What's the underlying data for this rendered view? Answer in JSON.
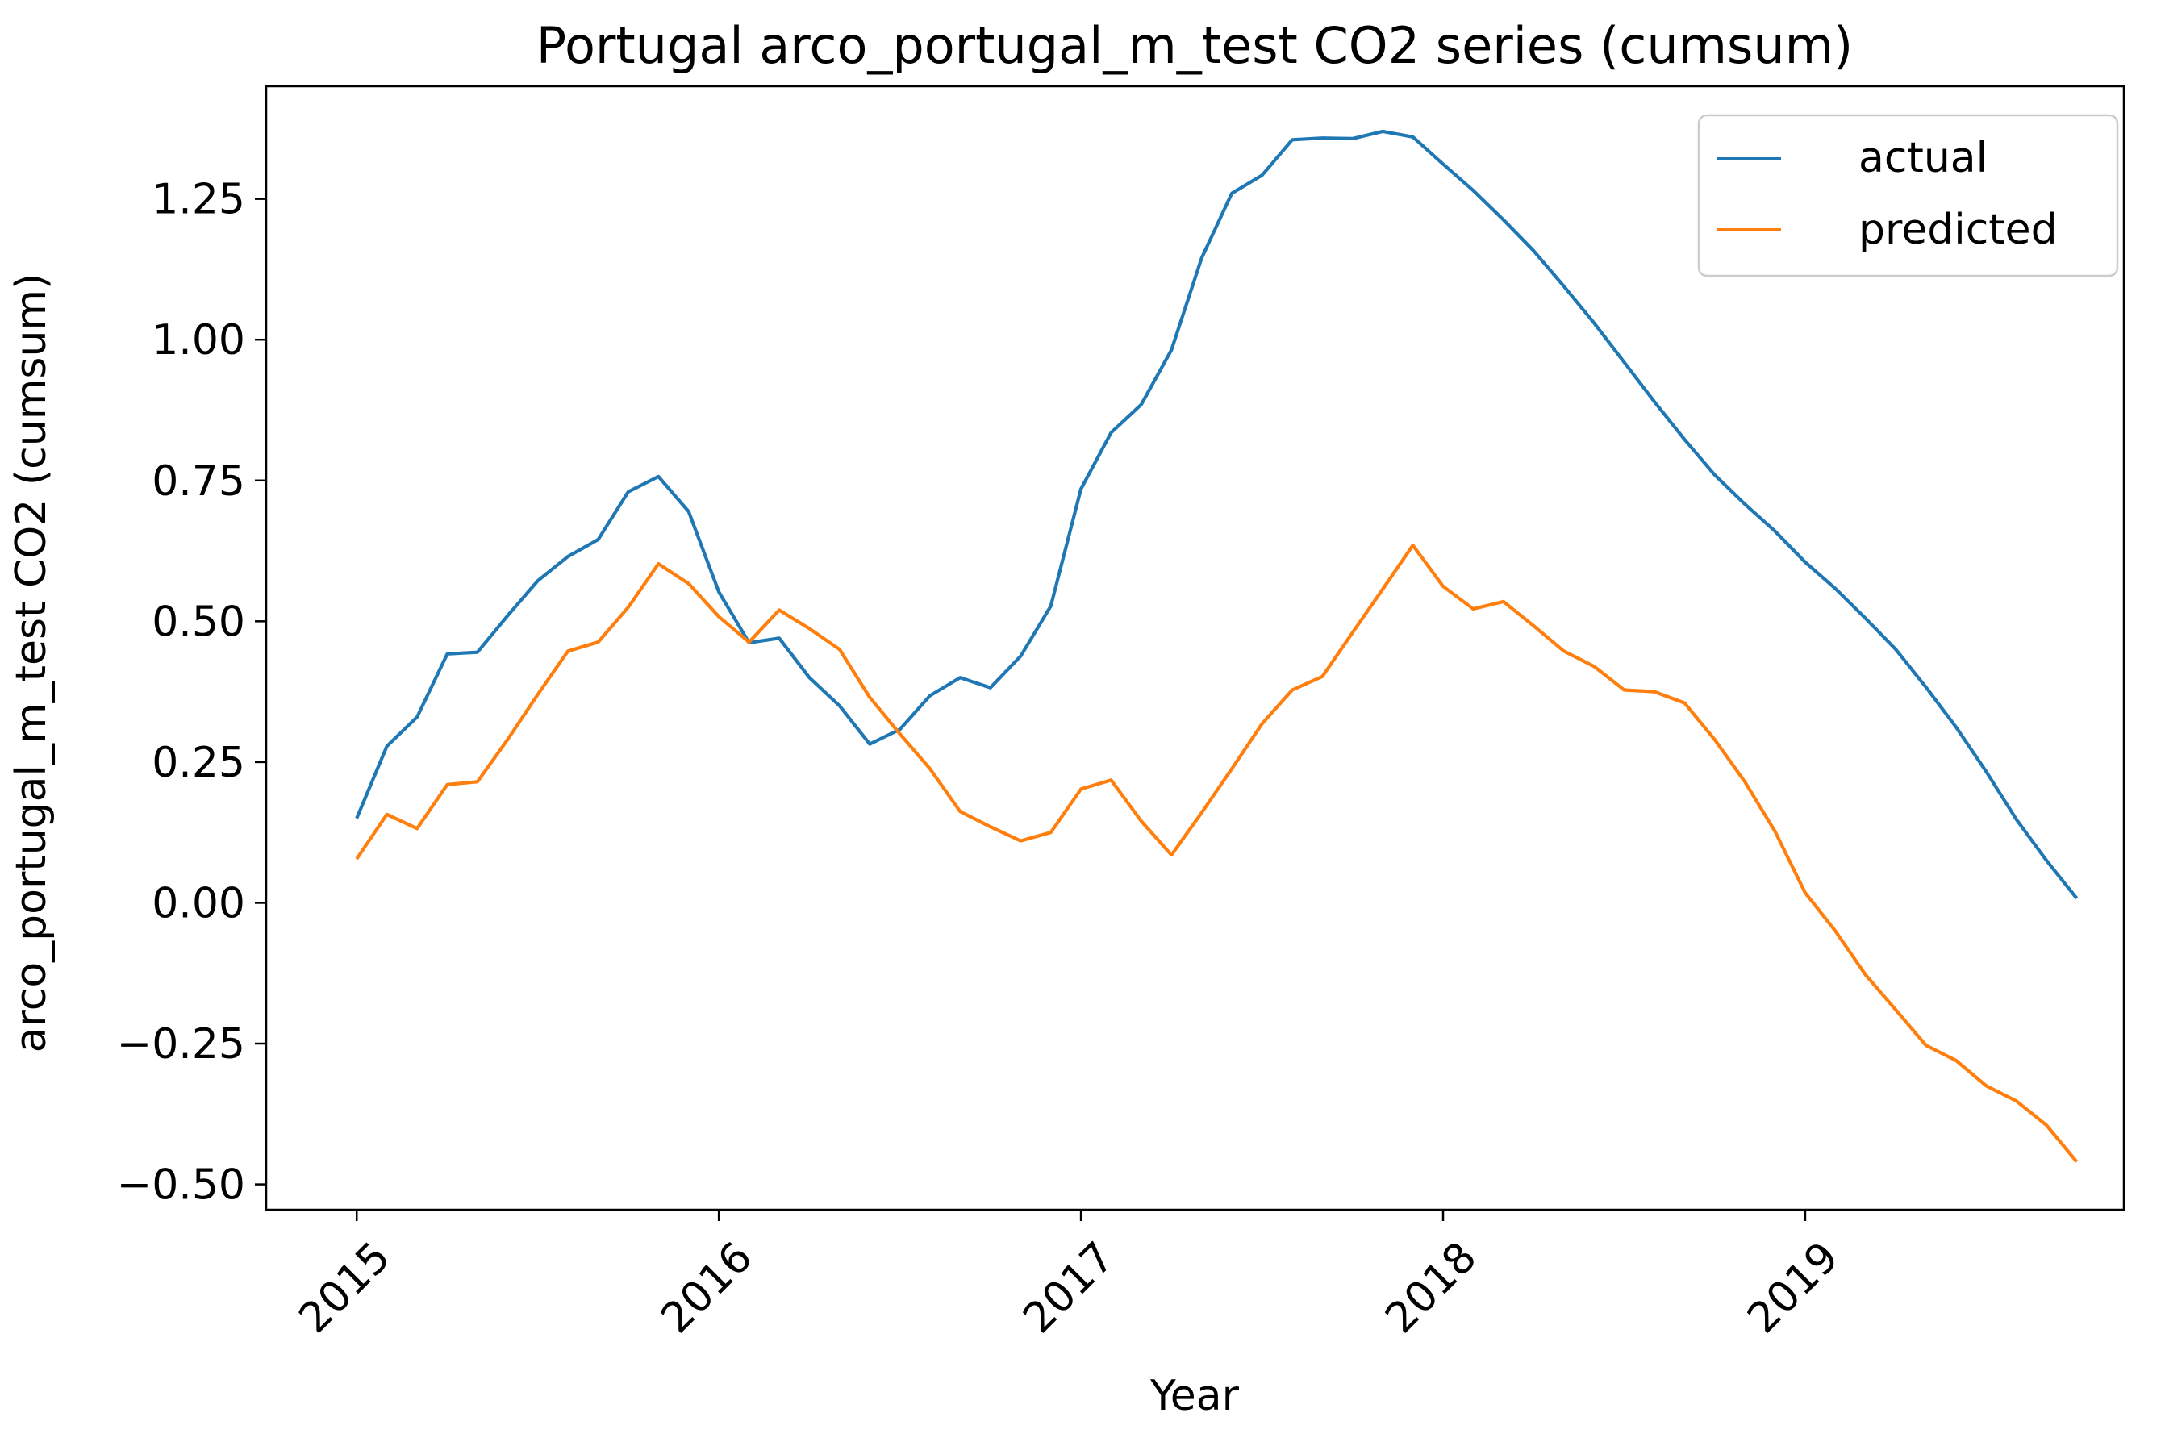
{
  "chart_data": {
    "type": "line",
    "title": "Portugal arco_portugal_m_test CO2 series (cumsum)",
    "xlabel": "Year",
    "ylabel": "arco_portugal_m_test CO2 (cumsum)",
    "x_start": "2015-01",
    "x_step": "month",
    "xlim": [
      2014.75,
      2019.88
    ],
    "ylim": [
      -0.545,
      1.45
    ],
    "x_ticks": [
      2015,
      2016,
      2017,
      2018,
      2019
    ],
    "x_tick_labels": [
      "2015",
      "2016",
      "2017",
      "2018",
      "2019"
    ],
    "y_ticks": [
      -0.5,
      -0.25,
      0.0,
      0.25,
      0.5,
      0.75,
      1.0,
      1.25
    ],
    "y_tick_labels": [
      "−0.50",
      "−0.25",
      "0.00",
      "0.25",
      "0.50",
      "0.75",
      "1.00",
      "1.25"
    ],
    "grid": false,
    "legend_position": "top-right",
    "series": [
      {
        "name": "actual",
        "color": "#1f77b4",
        "values": [
          0.15,
          0.278,
          0.33,
          0.442,
          0.445,
          0.51,
          0.572,
          0.615,
          0.645,
          0.73,
          0.757,
          0.695,
          0.552,
          0.462,
          0.47,
          0.4,
          0.35,
          0.282,
          0.308,
          0.368,
          0.4,
          0.382,
          0.438,
          0.527,
          0.735,
          0.835,
          0.885,
          0.982,
          1.145,
          1.26,
          1.292,
          1.355,
          1.358,
          1.357,
          1.37,
          1.36,
          1.312,
          1.265,
          1.213,
          1.158,
          1.095,
          1.03,
          0.96,
          0.89,
          0.823,
          0.76,
          0.708,
          0.66,
          0.605,
          0.558,
          0.505,
          0.45,
          0.383,
          0.312,
          0.233,
          0.148,
          0.075,
          0.008
        ]
      },
      {
        "name": "predicted",
        "color": "#ff7f0e",
        "values": [
          0.078,
          0.157,
          0.132,
          0.21,
          0.215,
          0.29,
          0.37,
          0.447,
          0.463,
          0.525,
          0.602,
          0.567,
          0.508,
          0.463,
          0.52,
          0.487,
          0.45,
          0.365,
          0.3,
          0.238,
          0.162,
          0.135,
          0.11,
          0.125,
          0.202,
          0.218,
          0.145,
          0.085,
          0.16,
          0.238,
          0.318,
          0.378,
          0.402,
          0.48,
          0.557,
          0.635,
          0.562,
          0.522,
          0.535,
          0.492,
          0.447,
          0.42,
          0.378,
          0.375,
          0.355,
          0.29,
          0.215,
          0.127,
          0.018,
          -0.05,
          -0.128,
          -0.19,
          -0.253,
          -0.28,
          -0.325,
          -0.352,
          -0.395,
          -0.46
        ]
      }
    ]
  }
}
